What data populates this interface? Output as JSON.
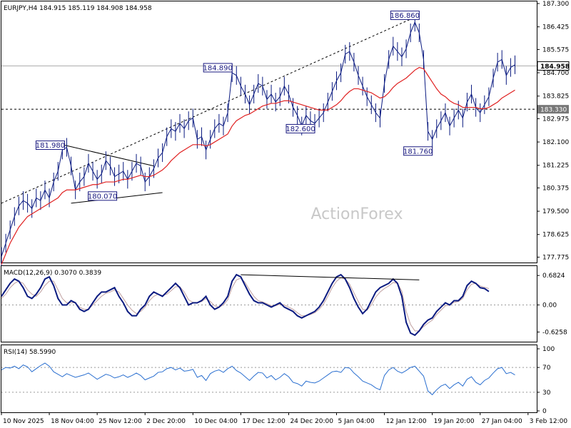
{
  "chart_data": {
    "type": "line",
    "header": "EURJPY,H4  184.915 185.119 184.908 184.958",
    "watermark": "ActionForex",
    "price_panel": {
      "yticks": [
        "187.300",
        "186.425",
        "185.575",
        "184.700",
        "183.825",
        "182.975",
        "182.100",
        "181.225",
        "180.375",
        "179.500",
        "178.625",
        "177.775"
      ],
      "ylim": [
        177.6,
        187.3
      ],
      "current_price": "184.958",
      "support_level": "183.330",
      "annotations": [
        {
          "text": "181.980",
          "x": 14.5,
          "y": 181.98
        },
        {
          "text": "180.070",
          "x": 26.5,
          "y": 180.07
        },
        {
          "text": "184.890",
          "x": 53,
          "y": 184.89
        },
        {
          "text": "182.600",
          "x": 72,
          "y": 182.6
        },
        {
          "text": "186.860",
          "x": 96,
          "y": 186.86
        },
        {
          "text": "181.760",
          "x": 99,
          "y": 181.76
        }
      ],
      "series": [
        {
          "values": [
            177.8,
            178.3,
            178.8,
            179.3,
            179.7,
            179.9,
            179.8,
            179.6,
            180.0,
            179.9,
            180.3,
            180.0,
            180.6,
            181.0,
            181.8,
            181.9,
            181.2,
            180.3,
            180.6,
            180.8,
            181.3,
            181.0,
            180.7,
            180.9,
            181.4,
            181.2,
            180.8,
            180.9,
            181.0,
            180.7,
            181.0,
            181.3,
            181.2,
            180.6,
            180.8,
            181.1,
            181.5,
            181.7,
            182.3,
            182.6,
            182.5,
            182.8,
            182.6,
            182.9,
            183.0,
            182.2,
            182.3,
            181.8,
            182.2,
            182.6,
            182.8,
            182.7,
            183.2,
            184.7,
            184.6,
            184.2,
            183.9,
            183.5,
            183.9,
            184.3,
            184.2,
            183.7,
            183.9,
            183.6,
            183.8,
            184.2,
            183.9,
            183.4,
            183.1,
            182.7,
            183.1,
            182.9,
            182.8,
            183.0,
            183.2,
            183.6,
            184.0,
            184.4,
            184.7,
            185.4,
            185.5,
            185.1,
            184.6,
            184.2,
            183.8,
            183.5,
            183.2,
            183.0,
            184.3,
            185.2,
            185.7,
            185.5,
            185.3,
            185.6,
            186.2,
            186.6,
            186.2,
            185.2,
            182.5,
            182.2,
            182.6,
            182.9,
            183.2,
            182.7,
            183.0,
            183.3,
            183.0,
            183.6,
            183.9,
            183.4,
            183.2,
            183.5,
            183.8,
            184.5,
            185.1,
            185.2,
            184.6,
            184.9,
            185.0
          ],
          "color": "#0a1a80"
        },
        {
          "values": [
            177.5,
            177.9,
            178.3,
            178.6,
            178.9,
            179.1,
            179.3,
            179.4,
            179.5,
            179.6,
            179.7,
            179.8,
            179.9,
            180.0,
            180.2,
            180.3,
            180.3,
            180.3,
            180.35,
            180.4,
            180.45,
            180.5,
            180.5,
            180.55,
            180.6,
            180.6,
            180.6,
            180.65,
            180.7,
            180.7,
            180.75,
            180.8,
            180.85,
            180.8,
            180.8,
            180.85,
            180.95,
            181.05,
            181.2,
            181.4,
            181.55,
            181.7,
            181.8,
            181.9,
            182.0,
            182.0,
            182.0,
            181.95,
            182.0,
            182.1,
            182.2,
            182.3,
            182.4,
            182.7,
            182.9,
            183.0,
            183.1,
            183.15,
            183.25,
            183.35,
            183.45,
            183.5,
            183.55,
            183.55,
            183.6,
            183.65,
            183.65,
            183.6,
            183.55,
            183.5,
            183.45,
            183.4,
            183.35,
            183.3,
            183.3,
            183.3,
            183.4,
            183.5,
            183.65,
            183.85,
            184.0,
            184.1,
            184.1,
            184.05,
            184.0,
            183.95,
            183.85,
            183.75,
            183.8,
            183.95,
            184.15,
            184.3,
            184.4,
            184.5,
            184.65,
            184.8,
            184.9,
            184.85,
            184.6,
            184.35,
            184.1,
            183.9,
            183.8,
            183.65,
            183.55,
            183.5,
            183.4,
            183.4,
            183.4,
            183.4,
            183.35,
            183.35,
            183.4,
            183.5,
            183.6,
            183.75,
            183.85,
            183.95,
            184.05
          ],
          "color": "#e02020"
        }
      ],
      "trendlines": [
        {
          "x1": 0,
          "y1": 179.8,
          "x2": 96,
          "y2": 186.86,
          "style": "dashed"
        },
        {
          "x1": 14.5,
          "y1": 181.98,
          "x2": 35,
          "y2": 181.2,
          "style": "solid"
        },
        {
          "x1": 16,
          "y1": 179.8,
          "x2": 37,
          "y2": 180.2,
          "style": "solid"
        }
      ]
    },
    "macd_panel": {
      "label": "MACD(12,26,9) 0.3070 0.3839",
      "yticks": [
        "0.6824",
        "0.00",
        "-0.6258"
      ],
      "ylim": [
        -0.8,
        0.85
      ],
      "main_color": "#0a1a80",
      "signal_color": "#c0a0a0",
      "series_main": [
        0.2,
        0.35,
        0.5,
        0.6,
        0.55,
        0.4,
        0.2,
        0.15,
        0.25,
        0.4,
        0.6,
        0.65,
        0.45,
        0.15,
        0.0,
        0.0,
        0.1,
        0.05,
        -0.1,
        -0.15,
        -0.1,
        0.05,
        0.2,
        0.3,
        0.3,
        0.35,
        0.4,
        0.2,
        0.05,
        -0.15,
        -0.25,
        -0.25,
        -0.1,
        0.0,
        0.2,
        0.3,
        0.25,
        0.2,
        0.3,
        0.4,
        0.5,
        0.4,
        0.2,
        0.0,
        0.05,
        0.05,
        0.1,
        0.2,
        0.0,
        -0.1,
        -0.05,
        0.05,
        0.2,
        0.55,
        0.7,
        0.65,
        0.45,
        0.25,
        0.1,
        0.05,
        0.05,
        0.0,
        -0.05,
        0.0,
        0.05,
        -0.05,
        -0.1,
        -0.15,
        -0.25,
        -0.3,
        -0.25,
        -0.2,
        -0.15,
        -0.05,
        0.1,
        0.3,
        0.5,
        0.65,
        0.7,
        0.6,
        0.4,
        0.15,
        -0.05,
        -0.2,
        -0.1,
        0.1,
        0.3,
        0.4,
        0.45,
        0.5,
        0.6,
        0.5,
        0.2,
        -0.4,
        -0.65,
        -0.7,
        -0.6,
        -0.45,
        -0.35,
        -0.3,
        -0.15,
        -0.05,
        0.05,
        0.0,
        0.1,
        0.1,
        0.2,
        0.45,
        0.55,
        0.5,
        0.4,
        0.38,
        0.31
      ],
      "series_signal": [
        0.15,
        0.25,
        0.4,
        0.5,
        0.55,
        0.5,
        0.35,
        0.25,
        0.2,
        0.3,
        0.45,
        0.55,
        0.55,
        0.35,
        0.15,
        0.05,
        0.05,
        0.05,
        -0.05,
        -0.1,
        -0.1,
        0.0,
        0.1,
        0.2,
        0.27,
        0.3,
        0.35,
        0.3,
        0.15,
        0.0,
        -0.12,
        -0.2,
        -0.15,
        -0.05,
        0.1,
        0.2,
        0.25,
        0.22,
        0.25,
        0.33,
        0.42,
        0.42,
        0.3,
        0.12,
        0.06,
        0.05,
        0.08,
        0.15,
        0.08,
        -0.02,
        -0.05,
        0.0,
        0.12,
        0.4,
        0.58,
        0.62,
        0.52,
        0.35,
        0.2,
        0.1,
        0.07,
        0.03,
        -0.02,
        -0.02,
        0.02,
        0.0,
        -0.05,
        -0.1,
        -0.18,
        -0.25,
        -0.25,
        -0.22,
        -0.18,
        -0.1,
        0.02,
        0.2,
        0.4,
        0.55,
        0.63,
        0.6,
        0.48,
        0.28,
        0.08,
        -0.1,
        -0.12,
        0.0,
        0.18,
        0.3,
        0.38,
        0.44,
        0.52,
        0.5,
        0.32,
        -0.15,
        -0.45,
        -0.6,
        -0.6,
        -0.5,
        -0.42,
        -0.35,
        -0.22,
        -0.12,
        -0.02,
        0.0,
        0.06,
        0.08,
        0.15,
        0.35,
        0.48,
        0.5,
        0.44,
        0.41,
        0.38
      ]
    },
    "rsi_panel": {
      "label": "RSI(14) 58.5990",
      "yticks": [
        "100",
        "70",
        "30",
        "0"
      ],
      "ylim": [
        0,
        100
      ],
      "color": "#2a6fd0",
      "values": [
        66,
        70,
        69,
        72,
        68,
        74,
        71,
        63,
        68,
        73,
        77,
        72,
        63,
        59,
        55,
        60,
        57,
        54,
        56,
        58,
        61,
        56,
        51,
        55,
        59,
        57,
        53,
        55,
        58,
        54,
        57,
        61,
        57,
        50,
        53,
        56,
        62,
        63,
        68,
        70,
        66,
        69,
        64,
        65,
        67,
        54,
        57,
        49,
        60,
        64,
        66,
        62,
        68,
        72,
        65,
        61,
        55,
        49,
        56,
        62,
        61,
        53,
        57,
        50,
        54,
        60,
        55,
        46,
        44,
        40,
        48,
        46,
        45,
        48,
        53,
        58,
        63,
        64,
        62,
        70,
        69,
        61,
        55,
        48,
        45,
        42,
        37,
        34,
        57,
        66,
        70,
        64,
        61,
        65,
        70,
        72,
        64,
        56,
        32,
        26,
        34,
        40,
        43,
        36,
        42,
        46,
        40,
        51,
        55,
        46,
        42,
        49,
        53,
        61,
        68,
        70,
        60,
        62,
        58
      ],
      "ref_lines": [
        70,
        30
      ]
    },
    "x_labels": [
      {
        "text": "10 Nov 2025",
        "x": 0
      },
      {
        "text": "18 Nov 04:00",
        "x": 11
      },
      {
        "text": "25 Nov 12:00",
        "x": 22
      },
      {
        "text": "2 Dec 20:00",
        "x": 33
      },
      {
        "text": "10 Dec 04:00",
        "x": 44
      },
      {
        "text": "17 Dec 12:00",
        "x": 55
      },
      {
        "text": "24 Dec 20:00",
        "x": 66
      },
      {
        "text": "5 Jan 04:00",
        "x": 77
      },
      {
        "text": "12 Jan 12:00",
        "x": 88
      },
      {
        "text": "19 Jan 20:00",
        "x": 99
      },
      {
        "text": "27 Jan 04:00",
        "x": 110
      },
      {
        "text": "3 Feb 12:00",
        "x": 121
      }
    ],
    "xlim": [
      0,
      123
    ]
  }
}
